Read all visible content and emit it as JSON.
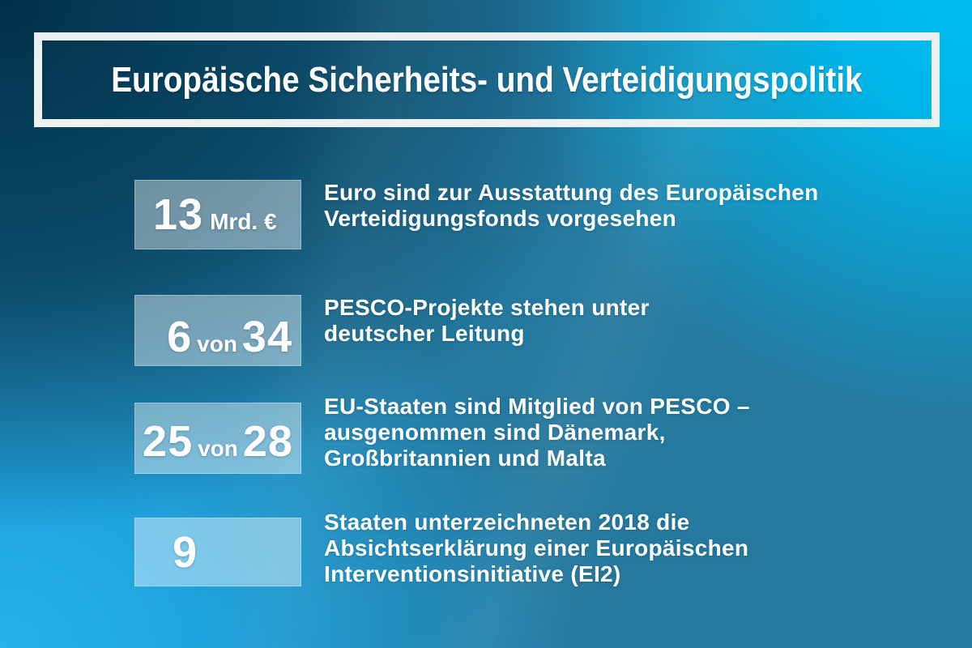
{
  "header": {
    "title": "Europäische Sicherheits- und Verteidigungspolitik"
  },
  "stats": [
    {
      "value": "13",
      "unit": "Mrd. €",
      "lines": [
        "Euro sind zur Ausstattung des Europäischen",
        "Verteidigungsfonds vorgesehen"
      ]
    },
    {
      "value_a": "6",
      "connector": "von",
      "value_b": "34",
      "lines": [
        "PESCO-Projekte stehen unter",
        "deutscher Leitung"
      ]
    },
    {
      "value_a": "25",
      "connector": "von",
      "value_b": "28",
      "lines": [
        "EU-Staaten sind Mitglied von PESCO –",
        "ausgenommen sind Dänemark,",
        "Großbritannien und Malta"
      ]
    },
    {
      "value": "9",
      "lines": [
        "Staaten unterzeichneten 2018 die",
        "Absichtserklärung einer Europäischen",
        "Interventionsinitiative (EI2)"
      ]
    }
  ],
  "colors": {
    "bg_top_left": "#00304a",
    "bg_top_right": "#00b9e9",
    "bg_bottom_left": "#22aee9",
    "bg_bottom_right": "#25799f",
    "bg_center": "#1f7ca3",
    "frame_border": "#ecf0f3",
    "text": "#ffffff",
    "stat_box_fill": "rgba(255,255,255,0.42)"
  },
  "chart_data": {
    "type": "table",
    "title": "Europäische Sicherheits- und Verteidigungspolitik",
    "rows": [
      {
        "value": 13,
        "unit": "Mrd. €",
        "description": "Euro sind zur Ausstattung des Europäischen Verteidigungsfonds vorgesehen"
      },
      {
        "value": 6,
        "total": 34,
        "description": "PESCO-Projekte stehen unter deutscher Leitung"
      },
      {
        "value": 25,
        "total": 28,
        "description": "EU-Staaten sind Mitglied von PESCO – ausgenommen sind Dänemark, Großbritannien und Malta"
      },
      {
        "value": 9,
        "description": "Staaten unterzeichneten 2018 die Absichtserklärung einer Europäischen Interventionsinitiative (EI2)"
      }
    ]
  }
}
